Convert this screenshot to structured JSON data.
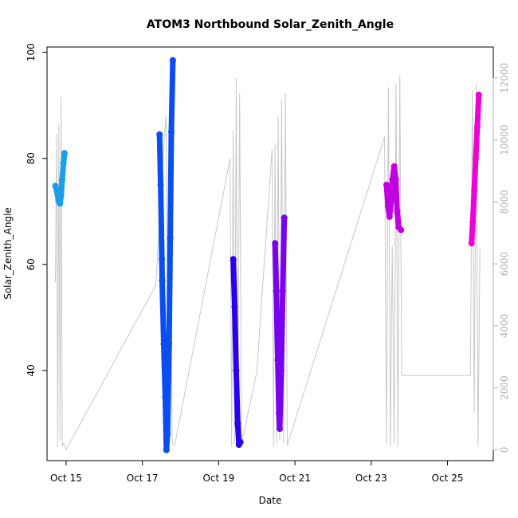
{
  "chart_data": {
    "type": "scatter",
    "title": "ATOM3 Northbound Solar_Zenith_Angle",
    "xlabel": "Date",
    "ylabel": "Solar_Zenith_Angle",
    "x_tick_labels": [
      "Oct 15",
      "Oct 17",
      "Oct 19",
      "Oct 21",
      "Oct 23",
      "Oct 25"
    ],
    "x_tick_values": [
      15,
      17,
      19,
      21,
      23,
      25
    ],
    "xlim": [
      14.5,
      26.2
    ],
    "ylim": [
      23.0,
      101.0
    ],
    "y_ticks": [
      40,
      60,
      80,
      100
    ],
    "y2_ticks": [
      0,
      2000,
      4000,
      6000,
      8000,
      10000,
      12000
    ],
    "y2lim": [
      -350,
      13000
    ],
    "secondary_color": "#c8c8c8",
    "series": [
      {
        "color": "#1a9fe8",
        "points": [
          [
            14.72,
            74.8
          ],
          [
            14.76,
            73.8
          ],
          [
            14.8,
            72.0
          ],
          [
            14.84,
            71.5
          ],
          [
            14.87,
            73.0
          ],
          [
            14.9,
            76.0
          ],
          [
            14.93,
            79.0
          ],
          [
            14.96,
            81.0
          ]
        ]
      },
      {
        "color": "#0a4df0",
        "points": [
          [
            17.45,
            84.5
          ],
          [
            17.48,
            75.0
          ],
          [
            17.51,
            61.0
          ],
          [
            17.52,
            57.0
          ],
          [
            17.56,
            45.0
          ],
          [
            17.6,
            35.0
          ],
          [
            17.63,
            25.0
          ],
          [
            17.66,
            28.0
          ],
          [
            17.7,
            45.0
          ],
          [
            17.73,
            65.0
          ],
          [
            17.76,
            85.0
          ],
          [
            17.8,
            98.5
          ]
        ]
      },
      {
        "color": "#2b00f0",
        "points": [
          [
            19.38,
            61.0
          ],
          [
            19.42,
            52.0
          ],
          [
            19.46,
            40.0
          ],
          [
            19.5,
            30.0
          ],
          [
            19.53,
            26.0
          ],
          [
            19.57,
            26.5
          ]
        ]
      },
      {
        "color": "#7a00f0",
        "points": [
          [
            20.48,
            64.0
          ],
          [
            20.51,
            55.0
          ],
          [
            20.55,
            42.0
          ],
          [
            20.58,
            32.0
          ],
          [
            20.6,
            29.0
          ],
          [
            20.64,
            40.0
          ],
          [
            20.68,
            55.0
          ],
          [
            20.72,
            68.8
          ]
        ]
      },
      {
        "color": "#c000e0",
        "points": [
          [
            23.4,
            75.0
          ],
          [
            23.44,
            71.0
          ],
          [
            23.48,
            69.0
          ],
          [
            23.52,
            72.0
          ],
          [
            23.56,
            76.0
          ],
          [
            23.6,
            78.5
          ],
          [
            23.64,
            76.0
          ],
          [
            23.68,
            70.0
          ],
          [
            23.72,
            67.0
          ],
          [
            23.78,
            66.5
          ]
        ]
      },
      {
        "color": "#f000d8",
        "points": [
          [
            25.63,
            64.0
          ],
          [
            25.66,
            68.0
          ],
          [
            25.7,
            74.0
          ],
          [
            25.74,
            80.0
          ],
          [
            25.78,
            86.0
          ],
          [
            25.82,
            92.0
          ]
        ]
      }
    ],
    "secondary_series": {
      "x": [
        14.72,
        14.75,
        14.78,
        14.81,
        14.84,
        14.87,
        14.9,
        14.93,
        14.96,
        15.0,
        17.35,
        17.55,
        17.62,
        17.68,
        17.72,
        17.78,
        17.85,
        19.3,
        19.34,
        19.38,
        19.42,
        19.46,
        19.5,
        19.55,
        19.6,
        20.0,
        20.4,
        20.44,
        20.48,
        20.52,
        20.56,
        20.6,
        20.65,
        20.7,
        20.75,
        20.8,
        23.35,
        23.4,
        23.45,
        23.5,
        23.55,
        23.6,
        23.65,
        23.7,
        23.75,
        23.8,
        25.6,
        25.65,
        25.7,
        25.75,
        25.8,
        25.85
      ],
      "y": [
        5400,
        10200,
        100,
        10500,
        300,
        11400,
        100,
        200,
        150,
        0,
        5300,
        9600,
        10800,
        100,
        11000,
        200,
        150,
        9400,
        100,
        10300,
        200,
        12000,
        100,
        11500,
        200,
        2500,
        9700,
        100,
        9900,
        200,
        10800,
        300,
        11300,
        200,
        11500,
        150,
        10100,
        200,
        11700,
        100,
        6600,
        200,
        11800,
        100,
        12100,
        2400,
        2400,
        11600,
        1200,
        11800,
        100,
        6500
      ]
    }
  }
}
